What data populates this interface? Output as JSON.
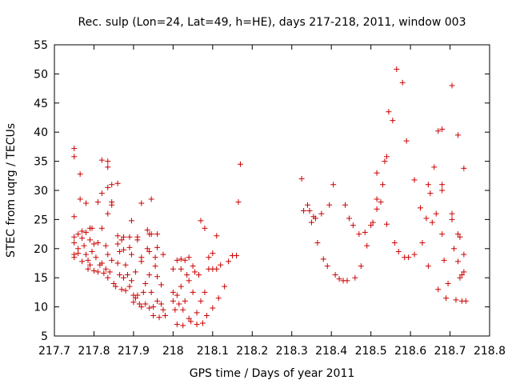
{
  "chart_data": {
    "type": "scatter",
    "title": "Rec. sulp (Lon=24, Lat=49, h=HE), days 217-218, 2011, window 003",
    "xlabel": "GPS time / Days of year 2011",
    "ylabel": "STEC from uqrg / TECUs",
    "xlim": [
      217.7,
      218.8
    ],
    "ylim": [
      5,
      55
    ],
    "xticks": [
      "217.7",
      "217.8",
      "217.9",
      "218",
      "218.1",
      "218.2",
      "218.3",
      "218.4",
      "218.5",
      "218.6",
      "218.7",
      "218.8"
    ],
    "yticks": [
      "5",
      "10",
      "15",
      "20",
      "25",
      "30",
      "35",
      "40",
      "45",
      "50",
      "55"
    ],
    "xtick_values": [
      217.7,
      217.8,
      217.9,
      218.0,
      218.1,
      218.2,
      218.3,
      218.4,
      218.5,
      218.6,
      218.7,
      218.8
    ],
    "ytick_values": [
      5,
      10,
      15,
      20,
      25,
      30,
      35,
      40,
      45,
      50,
      55
    ],
    "grid": false,
    "marker": "+",
    "marker_color": "#cc0000",
    "series": [
      {
        "points": [
          [
            217.75,
            37.2
          ],
          [
            217.75,
            35.8
          ],
          [
            217.75,
            25.5
          ],
          [
            217.75,
            22.0
          ],
          [
            217.75,
            21.0
          ],
          [
            217.75,
            19.0
          ],
          [
            217.75,
            18.5
          ],
          [
            217.76,
            22.5
          ],
          [
            217.76,
            20.0
          ],
          [
            217.76,
            19.2
          ],
          [
            217.765,
            32.8
          ],
          [
            217.765,
            28.5
          ],
          [
            217.77,
            23.0
          ],
          [
            217.77,
            21.8
          ],
          [
            217.77,
            17.8
          ],
          [
            217.775,
            20.5
          ],
          [
            217.78,
            27.8
          ],
          [
            217.78,
            22.8
          ],
          [
            217.78,
            19.0
          ],
          [
            217.785,
            18.0
          ],
          [
            217.785,
            16.5
          ],
          [
            217.79,
            23.5
          ],
          [
            217.79,
            21.5
          ],
          [
            217.79,
            17.2
          ],
          [
            217.795,
            23.5
          ],
          [
            217.795,
            19.5
          ],
          [
            217.8,
            20.8
          ],
          [
            217.8,
            16.2
          ],
          [
            217.805,
            18.5
          ],
          [
            217.81,
            28.0
          ],
          [
            217.81,
            21.0
          ],
          [
            217.81,
            16.0
          ],
          [
            217.815,
            17.2
          ],
          [
            217.82,
            35.2
          ],
          [
            217.82,
            29.5
          ],
          [
            217.82,
            23.5
          ],
          [
            217.82,
            17.5
          ],
          [
            217.825,
            15.8
          ],
          [
            217.83,
            20.5
          ],
          [
            217.83,
            16.5
          ],
          [
            217.835,
            35.0
          ],
          [
            217.835,
            34.0
          ],
          [
            217.835,
            30.5
          ],
          [
            217.835,
            26.0
          ],
          [
            217.835,
            19.0
          ],
          [
            217.835,
            15.0
          ],
          [
            217.84,
            16.0
          ],
          [
            217.845,
            31.0
          ],
          [
            217.845,
            28.0
          ],
          [
            217.845,
            27.5
          ],
          [
            217.845,
            18.0
          ],
          [
            217.85,
            14.0
          ],
          [
            217.855,
            13.5
          ],
          [
            217.86,
            31.2
          ],
          [
            217.86,
            22.2
          ],
          [
            217.86,
            20.8
          ],
          [
            217.86,
            17.5
          ],
          [
            217.865,
            19.5
          ],
          [
            217.865,
            15.5
          ],
          [
            217.87,
            21.5
          ],
          [
            217.87,
            13.0
          ],
          [
            217.875,
            22.0
          ],
          [
            217.875,
            19.8
          ],
          [
            217.875,
            15.0
          ],
          [
            217.88,
            17.2
          ],
          [
            217.88,
            12.8
          ],
          [
            217.885,
            15.5
          ],
          [
            217.89,
            22.0
          ],
          [
            217.89,
            20.2
          ],
          [
            217.89,
            13.5
          ],
          [
            217.895,
            24.8
          ],
          [
            217.895,
            19.0
          ],
          [
            217.895,
            14.5
          ],
          [
            217.9,
            12.0
          ],
          [
            217.9,
            10.8
          ],
          [
            217.905,
            16.0
          ],
          [
            217.905,
            11.5
          ],
          [
            217.91,
            22.0
          ],
          [
            217.91,
            21.5
          ],
          [
            217.91,
            12.0
          ],
          [
            217.915,
            10.5
          ],
          [
            217.92,
            27.8
          ],
          [
            217.92,
            18.5
          ],
          [
            217.92,
            17.8
          ],
          [
            217.92,
            10.0
          ],
          [
            217.925,
            12.5
          ],
          [
            217.93,
            14.0
          ],
          [
            217.93,
            10.5
          ],
          [
            217.935,
            23.2
          ],
          [
            217.935,
            20.0
          ],
          [
            217.94,
            22.5
          ],
          [
            217.94,
            19.5
          ],
          [
            217.94,
            15.5
          ],
          [
            217.94,
            9.8
          ],
          [
            217.945,
            28.5
          ],
          [
            217.945,
            22.5
          ],
          [
            217.945,
            12.5
          ],
          [
            217.95,
            10.0
          ],
          [
            217.95,
            8.5
          ],
          [
            217.955,
            18.5
          ],
          [
            217.955,
            17.0
          ],
          [
            217.96,
            22.5
          ],
          [
            217.96,
            20.2
          ],
          [
            217.96,
            15.2
          ],
          [
            217.96,
            11.0
          ],
          [
            217.965,
            8.2
          ],
          [
            217.97,
            13.8
          ],
          [
            217.97,
            10.5
          ],
          [
            217.975,
            19.0
          ],
          [
            217.975,
            9.5
          ],
          [
            217.98,
            8.5
          ],
          [
            218.0,
            16.5
          ],
          [
            218.0,
            12.5
          ],
          [
            218.0,
            11.0
          ],
          [
            218.005,
            9.5
          ],
          [
            218.01,
            18.0
          ],
          [
            218.01,
            12.0
          ],
          [
            218.01,
            7.0
          ],
          [
            218.015,
            10.5
          ],
          [
            218.02,
            18.2
          ],
          [
            218.02,
            16.5
          ],
          [
            218.02,
            13.5
          ],
          [
            218.025,
            9.5
          ],
          [
            218.025,
            6.8
          ],
          [
            218.03,
            18.0
          ],
          [
            218.03,
            11.0
          ],
          [
            218.035,
            15.5
          ],
          [
            218.04,
            18.5
          ],
          [
            218.04,
            14.5
          ],
          [
            218.04,
            8.0
          ],
          [
            218.045,
            7.5
          ],
          [
            218.05,
            17.0
          ],
          [
            218.05,
            12.5
          ],
          [
            218.055,
            16.0
          ],
          [
            218.06,
            9.0
          ],
          [
            218.06,
            7.0
          ],
          [
            218.065,
            15.5
          ],
          [
            218.07,
            24.8
          ],
          [
            218.07,
            11.0
          ],
          [
            218.075,
            7.2
          ],
          [
            218.08,
            23.5
          ],
          [
            218.08,
            12.5
          ],
          [
            218.085,
            8.5
          ],
          [
            218.09,
            18.5
          ],
          [
            218.09,
            16.5
          ],
          [
            218.1,
            19.2
          ],
          [
            218.1,
            16.5
          ],
          [
            218.1,
            9.8
          ],
          [
            218.11,
            22.2
          ],
          [
            218.11,
            16.5
          ],
          [
            218.115,
            11.5
          ],
          [
            218.12,
            17.2
          ],
          [
            218.13,
            13.5
          ],
          [
            218.14,
            17.8
          ],
          [
            218.15,
            18.8
          ],
          [
            218.16,
            18.8
          ],
          [
            218.165,
            28.0
          ],
          [
            218.17,
            34.5
          ],
          [
            218.325,
            32.0
          ],
          [
            218.33,
            26.5
          ],
          [
            218.34,
            27.5
          ],
          [
            218.345,
            26.5
          ],
          [
            218.35,
            24.5
          ],
          [
            218.355,
            25.5
          ],
          [
            218.36,
            25.2
          ],
          [
            218.365,
            21.0
          ],
          [
            218.375,
            26.0
          ],
          [
            218.38,
            18.2
          ],
          [
            218.39,
            17.0
          ],
          [
            218.395,
            27.5
          ],
          [
            218.405,
            31.0
          ],
          [
            218.41,
            15.5
          ],
          [
            218.42,
            14.8
          ],
          [
            218.43,
            14.5
          ],
          [
            218.44,
            14.5
          ],
          [
            218.435,
            27.5
          ],
          [
            218.445,
            25.2
          ],
          [
            218.455,
            24.0
          ],
          [
            218.46,
            15.0
          ],
          [
            218.47,
            22.5
          ],
          [
            218.475,
            17.0
          ],
          [
            218.485,
            22.8
          ],
          [
            218.49,
            20.5
          ],
          [
            218.5,
            24.0
          ],
          [
            218.505,
            24.5
          ],
          [
            218.515,
            28.5
          ],
          [
            218.515,
            26.8
          ],
          [
            218.515,
            33.0
          ],
          [
            218.525,
            28.0
          ],
          [
            218.53,
            31.0
          ],
          [
            218.535,
            35.0
          ],
          [
            218.54,
            35.8
          ],
          [
            218.54,
            24.2
          ],
          [
            218.545,
            43.5
          ],
          [
            218.555,
            42.0
          ],
          [
            218.56,
            21.0
          ],
          [
            218.565,
            50.8
          ],
          [
            218.57,
            19.5
          ],
          [
            218.58,
            48.5
          ],
          [
            218.585,
            18.5
          ],
          [
            218.59,
            38.5
          ],
          [
            218.595,
            18.5
          ],
          [
            218.61,
            31.8
          ],
          [
            218.61,
            19.0
          ],
          [
            218.625,
            27.0
          ],
          [
            218.63,
            21.0
          ],
          [
            218.64,
            25.2
          ],
          [
            218.645,
            31.0
          ],
          [
            218.645,
            17.0
          ],
          [
            218.65,
            29.5
          ],
          [
            218.655,
            24.5
          ],
          [
            218.66,
            34.0
          ],
          [
            218.665,
            26.0
          ],
          [
            218.67,
            40.2
          ],
          [
            218.67,
            13.0
          ],
          [
            218.68,
            40.5
          ],
          [
            218.68,
            31.0
          ],
          [
            218.68,
            30.0
          ],
          [
            218.68,
            22.5
          ],
          [
            218.685,
            18.0
          ],
          [
            218.69,
            11.5
          ],
          [
            218.695,
            14.0
          ],
          [
            218.705,
            48.0
          ],
          [
            218.705,
            26.0
          ],
          [
            218.705,
            25.0
          ],
          [
            218.71,
            20.0
          ],
          [
            218.715,
            11.2
          ],
          [
            218.72,
            39.5
          ],
          [
            218.72,
            22.5
          ],
          [
            218.725,
            22.0
          ],
          [
            218.72,
            17.8
          ],
          [
            218.725,
            15.0
          ],
          [
            218.73,
            11.0
          ],
          [
            218.735,
            33.8
          ],
          [
            218.735,
            19.0
          ],
          [
            218.735,
            16.0
          ],
          [
            218.74,
            11.0
          ],
          [
            218.73,
            15.5
          ]
        ]
      }
    ]
  }
}
